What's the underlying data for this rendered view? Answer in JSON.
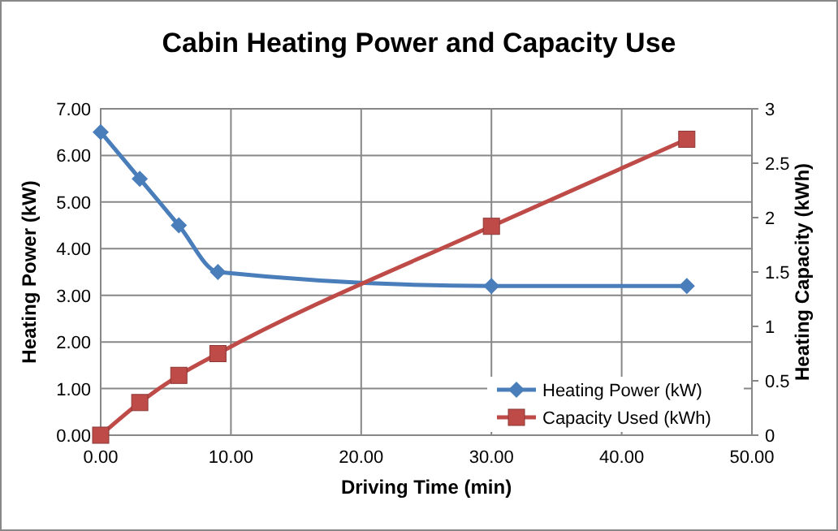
{
  "chart_data": {
    "type": "line",
    "title": "Cabin Heating Power and Capacity Use",
    "xlabel": "Driving Time (min)",
    "ylabel": "Heating Power (kW)",
    "y2label": "Heating Capacity (kWh)",
    "x": [
      0,
      3,
      6,
      9,
      30,
      45
    ],
    "series": [
      {
        "name": "Heating Power (kW)",
        "color": "#4a7ebb",
        "values": [
          6.5,
          5.5,
          4.5,
          3.5,
          3.2,
          3.2
        ],
        "marker": "diamond"
      },
      {
        "name": "Capacity Used (kWh)",
        "color": "#be4b48",
        "values": [
          0,
          0.3,
          0.55,
          0.75,
          1.92,
          2.72
        ],
        "marker": "square",
        "axis": "y2"
      }
    ],
    "xlim": [
      0,
      50
    ],
    "xticks": [
      {
        "value": 0,
        "label": "0.00"
      },
      {
        "value": 10,
        "label": "10.00"
      },
      {
        "value": 20,
        "label": "20.00"
      },
      {
        "value": 30,
        "label": "30.00"
      },
      {
        "value": 40,
        "label": "40.00"
      },
      {
        "value": 50,
        "label": "50.00"
      }
    ],
    "ylim": [
      0,
      7
    ],
    "yticks": [
      {
        "value": 0,
        "label": "0.00"
      },
      {
        "value": 1,
        "label": "1.00"
      },
      {
        "value": 2,
        "label": "2.00"
      },
      {
        "value": 3,
        "label": "3.00"
      },
      {
        "value": 4,
        "label": "4.00"
      },
      {
        "value": 5,
        "label": "5.00"
      },
      {
        "value": 6,
        "label": "6.00"
      },
      {
        "value": 7,
        "label": "7.00"
      }
    ],
    "y2lim": [
      0,
      3
    ],
    "y2ticks": [
      0,
      0.5,
      1,
      1.5,
      2,
      2.5,
      3
    ],
    "grid": true,
    "legend": "bottom right"
  }
}
